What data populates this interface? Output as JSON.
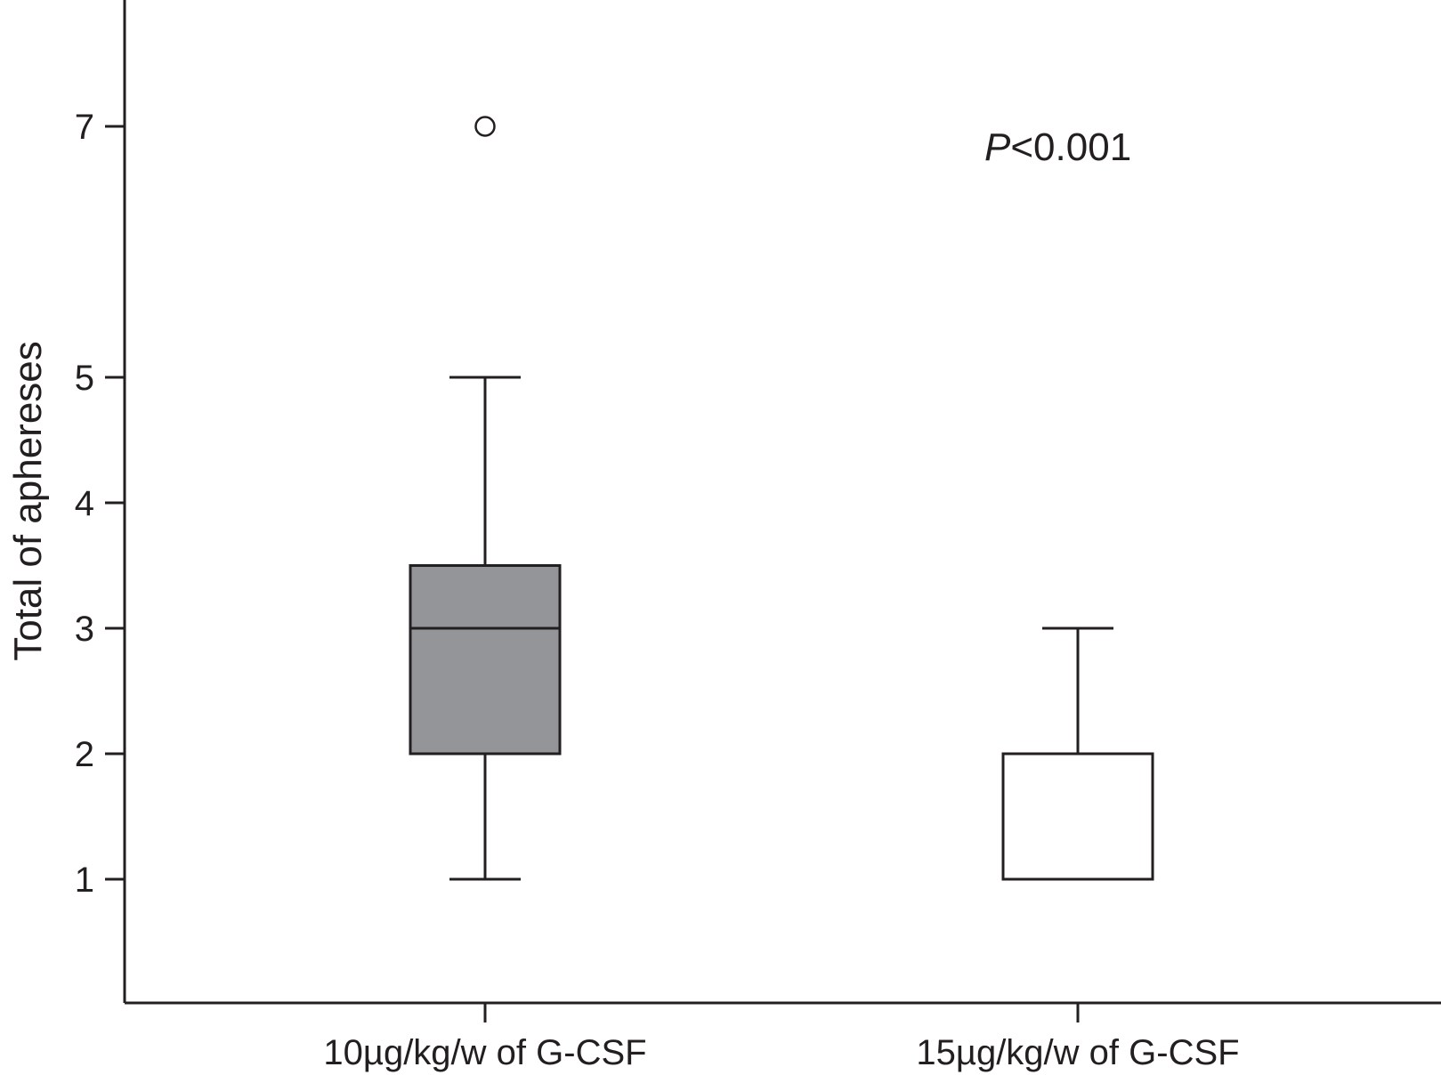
{
  "chart_data": {
    "type": "boxplot",
    "title": "",
    "xlabel": "",
    "ylabel": "Total of aphereses",
    "categories": [
      "10µg/kg/w of G-CSF",
      "15µg/kg/w of G-CSF"
    ],
    "yticks": [
      1,
      2,
      3,
      4,
      5,
      7
    ],
    "ylim": [
      0.2,
      8.0
    ],
    "grid": false,
    "boxes": [
      {
        "category": "10µg/kg/w of G-CSF",
        "whisker_low": 1,
        "q1": 2,
        "median": 3,
        "q3": 3.5,
        "whisker_high": 5,
        "outliers": [
          7
        ],
        "fill": "#939598"
      },
      {
        "category": "15µg/kg/w of G-CSF",
        "whisker_low": 1,
        "q1": 1,
        "median": 1,
        "q3": 2,
        "whisker_high": 3,
        "outliers": [],
        "fill": "#ffffff"
      }
    ],
    "annotation": {
      "italic": "P",
      "rest": "<0.001"
    }
  }
}
